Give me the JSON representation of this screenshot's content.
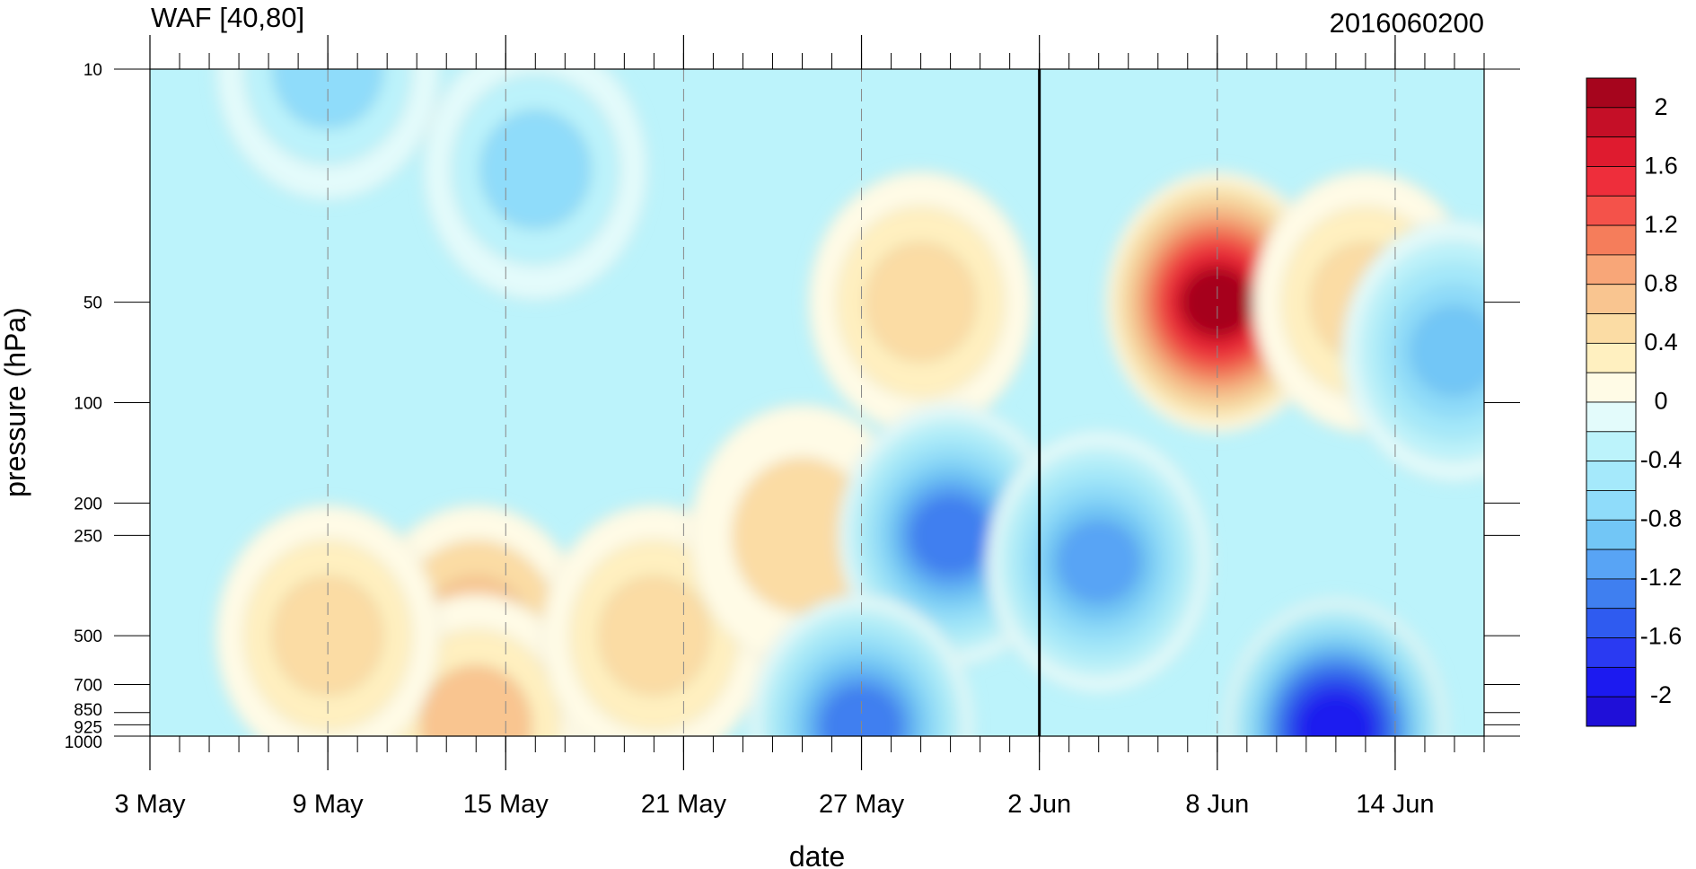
{
  "chart_data": {
    "type": "heatmap",
    "title": "WAF [40,80]",
    "subtitle": "2016060200",
    "xlabel": "date",
    "ylabel": "pressure (hPa)",
    "x_ticks": [
      "3 May",
      "9 May",
      "15 May",
      "21 May",
      "27 May",
      "2 Jun",
      "8 Jun",
      "14 Jun"
    ],
    "x_range": [
      "2016-05-03",
      "2016-06-17"
    ],
    "y_scale": "log",
    "y_reversed": true,
    "y_ticks": [
      10,
      50,
      100,
      200,
      250,
      500,
      700,
      850,
      925,
      1000
    ],
    "y_range": [
      1000,
      10
    ],
    "marker_date": "2016-06-02",
    "grid": "dashed vertical at labeled dates",
    "colorbar": {
      "position": "right",
      "labels": [
        "2",
        "1.6",
        "1.2",
        "0.8",
        "0.4",
        "0",
        "-0.4",
        "-0.8",
        "-1.2",
        "-1.6",
        "-2"
      ],
      "levels": [
        -2.2,
        -2.0,
        -1.8,
        -1.6,
        -1.4,
        -1.2,
        -1.0,
        -0.8,
        -0.6,
        -0.4,
        -0.2,
        0.0,
        0.2,
        0.4,
        0.6,
        0.8,
        1.0,
        1.2,
        1.4,
        1.6,
        1.8,
        2.0,
        2.2
      ],
      "colors": [
        "#1f0fd8",
        "#1c1af0",
        "#2a3af2",
        "#2f5bf0",
        "#3f7ff0",
        "#58a4f5",
        "#72c6f6",
        "#8fdcfa",
        "#a5e9fb",
        "#bcf3fb",
        "#e3fbfb",
        "#fffbe6",
        "#fff0c0",
        "#fbdca4",
        "#f9c590",
        "#f8a678",
        "#f57d5b",
        "#f4524a",
        "#ee2e3b",
        "#df1b2f",
        "#c50f27",
        "#a6051d"
      ]
    },
    "features": [
      {
        "date": "2016-06-08",
        "pressure": 50,
        "value": 2.0
      },
      {
        "date": "2016-06-13",
        "pressure": 50,
        "value": 0.5
      },
      {
        "date": "2016-05-29",
        "pressure": 50,
        "value": 0.5
      },
      {
        "date": "2016-05-14",
        "pressure": 500,
        "value": 0.7
      },
      {
        "date": "2016-05-14",
        "pressure": 925,
        "value": 0.6
      },
      {
        "date": "2016-05-20",
        "pressure": 500,
        "value": 0.5
      },
      {
        "date": "2016-05-25",
        "pressure": 250,
        "value": 0.4
      },
      {
        "date": "2016-05-09",
        "pressure": 500,
        "value": 0.5
      },
      {
        "date": "2016-05-30",
        "pressure": 250,
        "value": -1.3
      },
      {
        "date": "2016-06-04",
        "pressure": 300,
        "value": -1.1
      },
      {
        "date": "2016-06-12",
        "pressure": 950,
        "value": -2.0
      },
      {
        "date": "2016-06-16",
        "pressure": 70,
        "value": -1.0
      },
      {
        "date": "2016-05-16",
        "pressure": 20,
        "value": -0.7
      },
      {
        "date": "2016-05-09",
        "pressure": 10,
        "value": -0.7
      },
      {
        "date": "2016-05-27",
        "pressure": 930,
        "value": -1.3
      }
    ]
  }
}
